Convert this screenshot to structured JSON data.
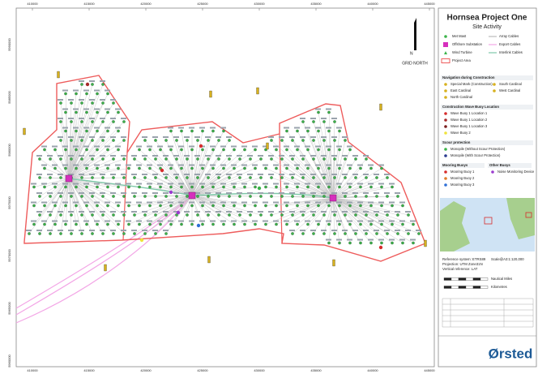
{
  "title": "Hornsea Project One",
  "subtitle": "Site Activity",
  "north_label": "N",
  "grid_north": "GRID NORTH",
  "easting_labels": [
    "410000",
    "415000",
    "420000",
    "425000",
    "430000",
    "435000",
    "440000",
    "445000"
  ],
  "northing_labels": [
    "5990000",
    "5985000",
    "5980000",
    "5975000",
    "5970000",
    "5965000",
    "5960000"
  ],
  "legend": {
    "top": [
      "Met Mast",
      "Array Cables",
      "Offshore Substation",
      "Export Cables",
      "Wind Turbine",
      "Interlink Cables",
      "Project Area"
    ],
    "sections": [
      {
        "heading": "Navigation during Construction",
        "items": [
          "Special Mark (Construction)",
          "East Cardinal",
          "North Cardinal",
          "South Cardinal",
          "West Cardinal"
        ]
      },
      {
        "heading": "Construction Wave Buoy Location",
        "items": [
          "Wave Buoy 1 Location 1",
          "Wave Buoy 1 Location 2",
          "Wave Buoy 1 Location 3",
          "Wave Buoy 2"
        ]
      },
      {
        "heading": "Scour protection",
        "items": [
          "Monopile (Without Scour Protection)",
          "Monopile (With Scour Protection)"
        ]
      },
      {
        "heading": "Mooring Buoys",
        "items": [
          "Mooring Buoy 1",
          "Mooring Buoy 2",
          "Mooring Buoy 3"
        ]
      },
      {
        "heading": "Other Buoys",
        "items": [
          "Noise Monitoring Device"
        ]
      }
    ]
  },
  "reference": [
    "Reference system: ETRS89",
    "Projection: UTM Zone31N",
    "Vertical reference: LAT"
  ],
  "scale": "Scale@A3:1:120,000",
  "scale_units": [
    "Nautical Miles",
    "Kilometres"
  ],
  "logo": "Ørsted"
}
